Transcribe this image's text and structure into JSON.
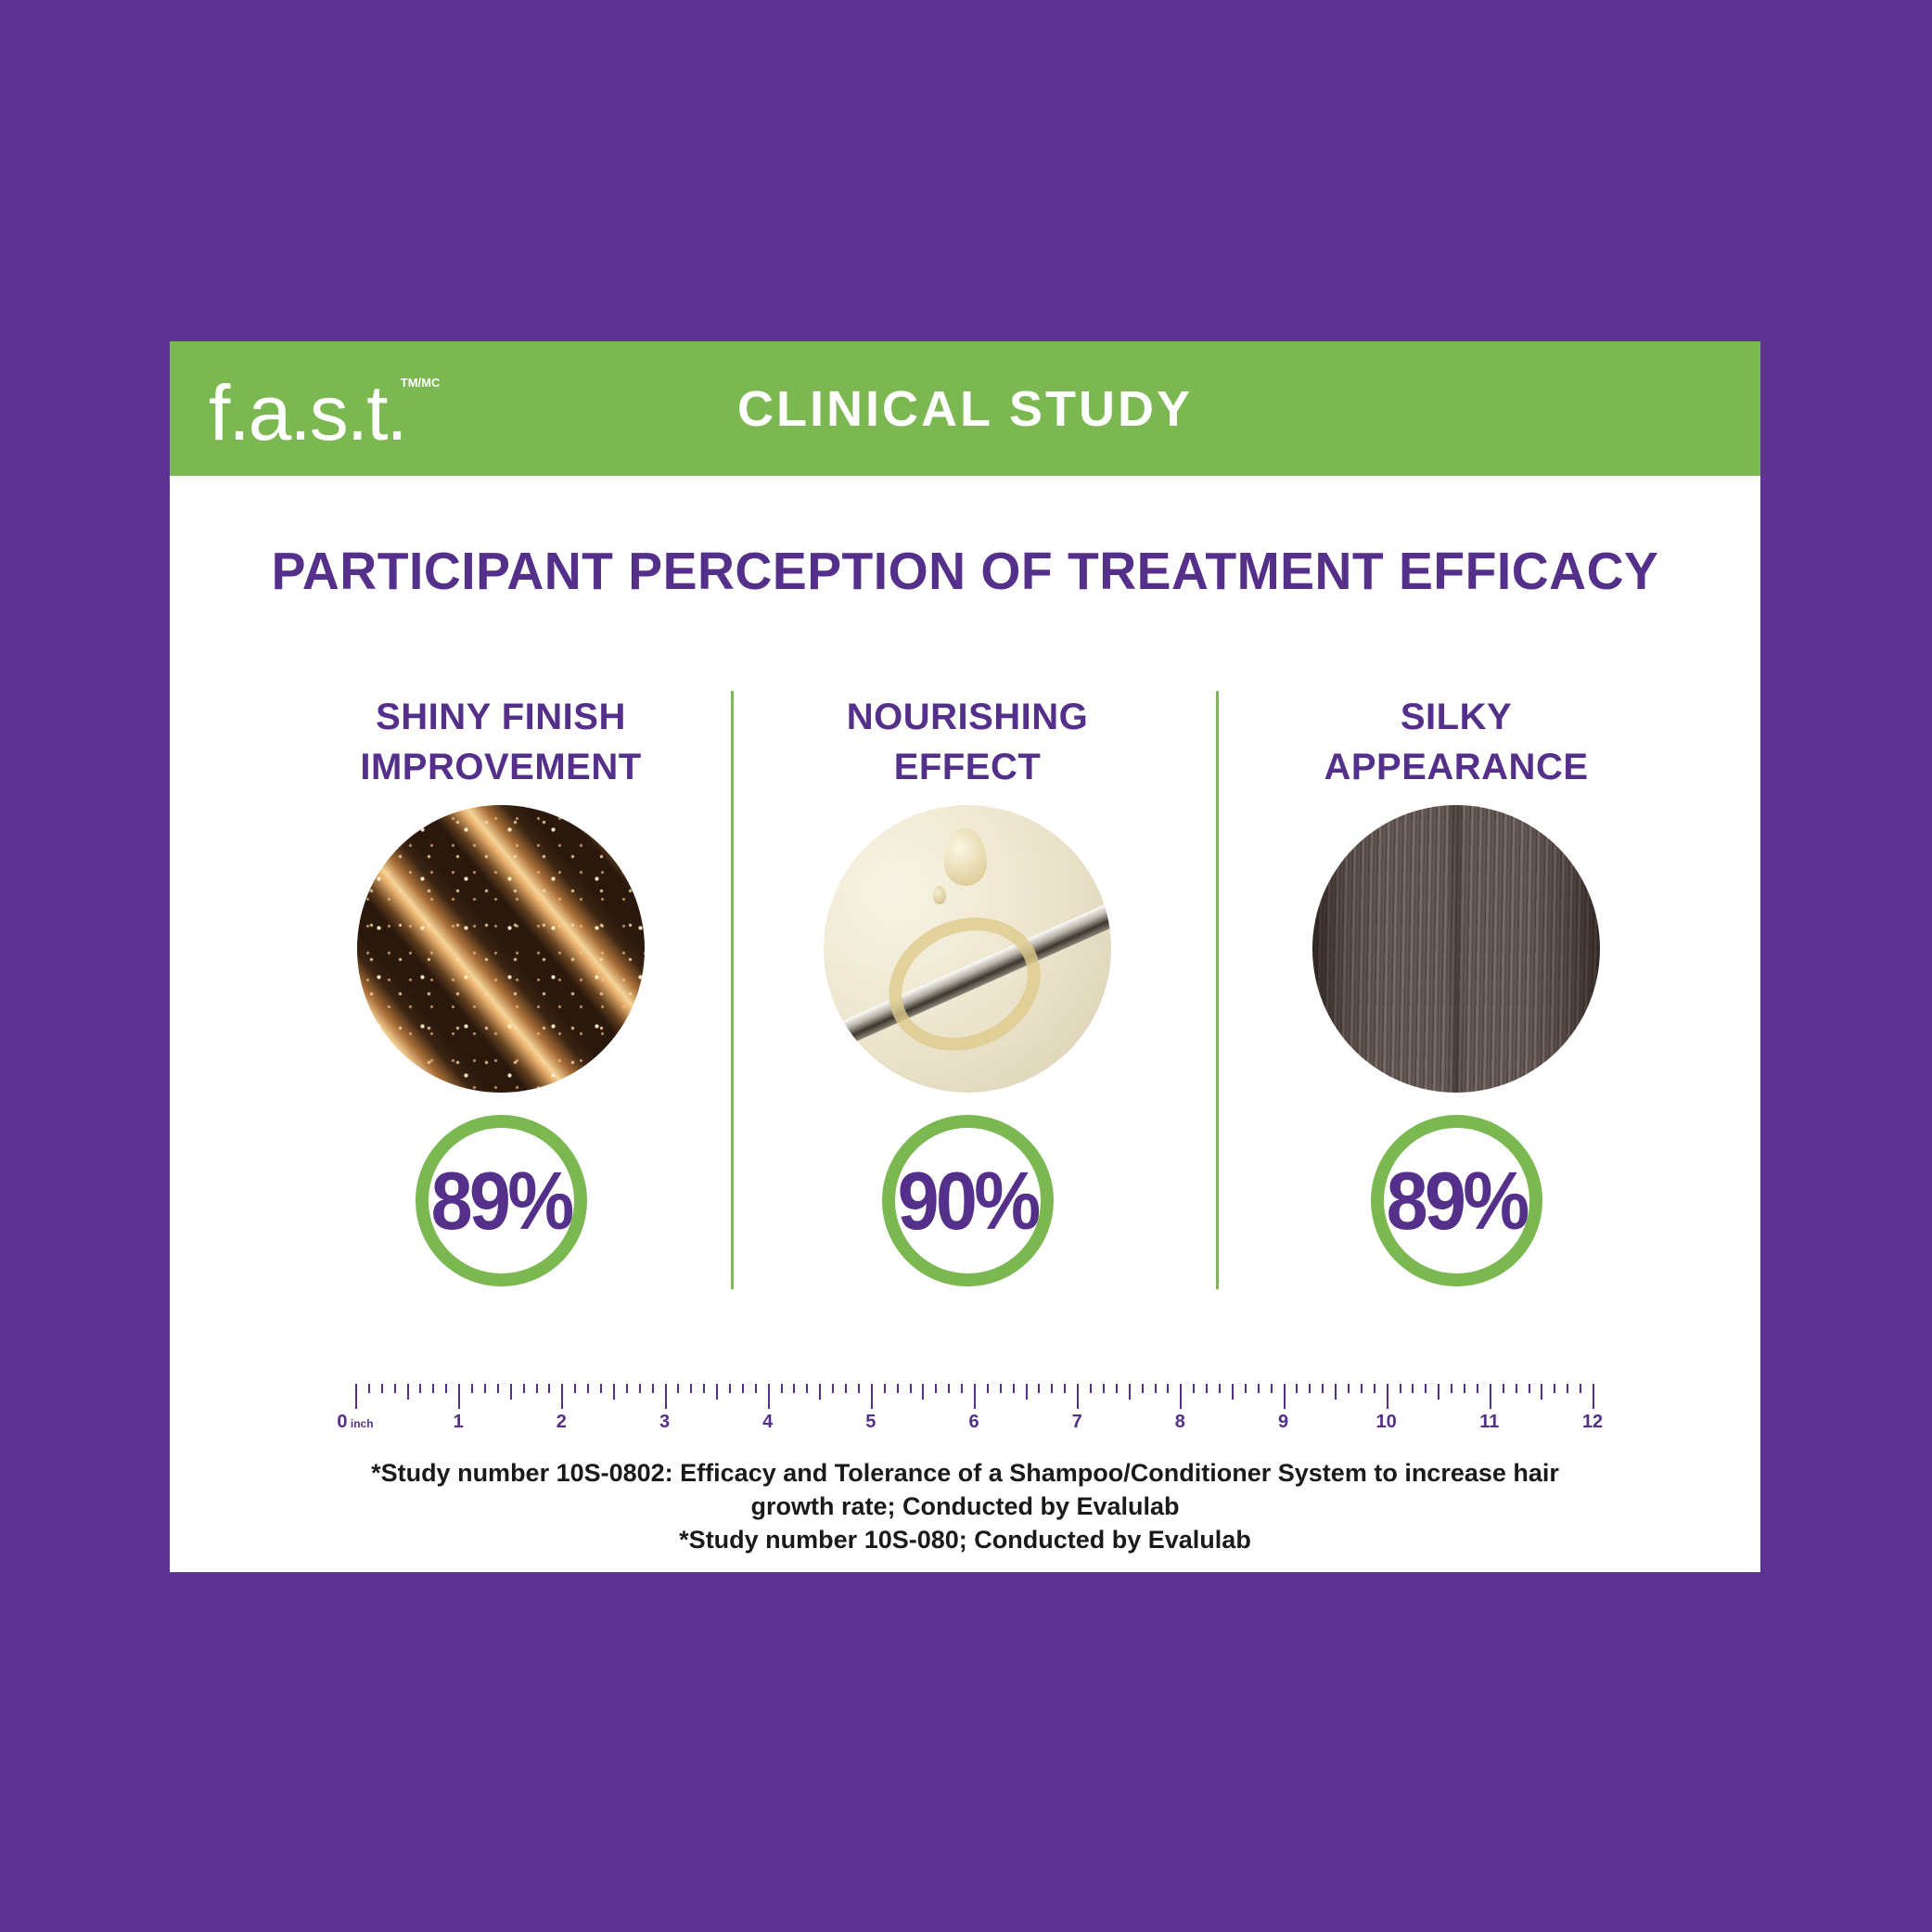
{
  "poster": {
    "background_color": "#5E3194",
    "card_background": "#FFFFFF"
  },
  "header": {
    "logo_text": "f.a.s.t.",
    "logo_trademark": "TM/MC",
    "title": "CLINICAL STUDY",
    "bar_color": "#7CB851"
  },
  "main": {
    "title": "PARTICIPANT PERCEPTION OF TREATMENT EFFICACY"
  },
  "stats": [
    {
      "label_line1": "SHINY FINISH",
      "label_line2": "IMPROVEMENT",
      "value": "89%",
      "image": "golden-shiny-hair-wave"
    },
    {
      "label_line1": "NOURISHING",
      "label_line2": "EFFECT",
      "value": "90%",
      "image": "oil-drop-on-hair-strand"
    },
    {
      "label_line1": "SILKY",
      "label_line2": "APPEARANCE",
      "value": "89%",
      "image": "dark-silky-straight-hair"
    }
  ],
  "ruler": {
    "unit_label": "inch",
    "min": 0,
    "max": 12,
    "ticks_per_inch": 8,
    "labels": [
      "0",
      "1",
      "2",
      "3",
      "4",
      "5",
      "6",
      "7",
      "8",
      "9",
      "10",
      "11",
      "12"
    ]
  },
  "footnotes": [
    "*Study number 10S-0802: Efficacy and Tolerance of a Shampoo/Conditioner System to increase hair growth rate; Conducted by Evalulab",
    "*Study number 10S-080; Conducted by Evalulab"
  ],
  "colors": {
    "purple_background": "#5E3194",
    "green_accent": "#7CB851",
    "purple_text": "#54308A",
    "footnote_text": "#1A1A1A"
  }
}
